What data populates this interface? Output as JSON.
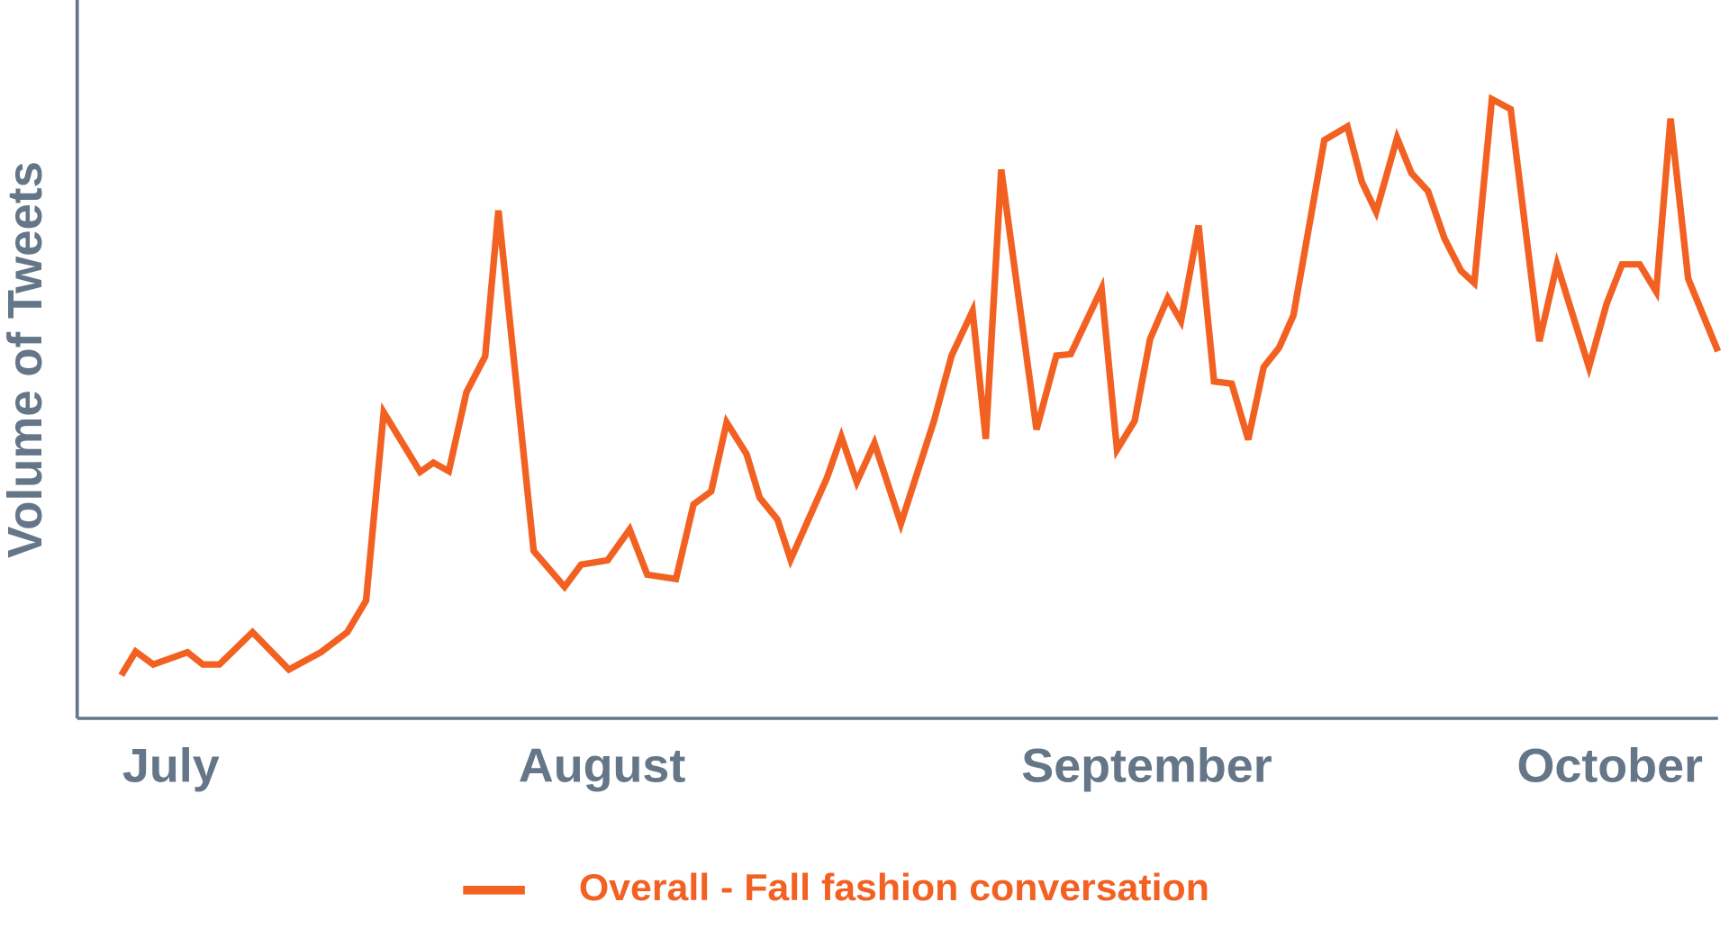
{
  "chart_data": {
    "type": "line",
    "y_label": "Volume of Tweets",
    "x": [
      11,
      12.3,
      13.9,
      17,
      18.4,
      19.9,
      22.9,
      26.2,
      29.1,
      31.5,
      33.2,
      34.8,
      38.1,
      39.3,
      40.7,
      42.3,
      44,
      45.2,
      48.4,
      51.2,
      52.7,
      55.1,
      57.1,
      58.7,
      61.3,
      62.9,
      64.5,
      65.9,
      67.7,
      68.9,
      70.5,
      71.7,
      75,
      76.3,
      77.7,
      79.3,
      81.7,
      84.7,
      86.3,
      88.2,
      89.4,
      90.8,
      94,
      95.8,
      97.1,
      99.9,
      101.3,
      102.9,
      104.3,
      105.9,
      107.1,
      108.7,
      110.1,
      111.7,
      113.2,
      114.6,
      116,
      117.3,
      120.1,
      122.2,
      123.5,
      124.8,
      126.7,
      128,
      129.5,
      131,
      132.5,
      133.7,
      135.3,
      137,
      139.6,
      141.2,
      144.1,
      145.7,
      147.1,
      148.7,
      150.2,
      151.5,
      153.1,
      155.8
    ],
    "series": [
      {
        "name": "Overall - Fall fashion conversation",
        "color": "#f26122",
        "values": [
          6.0,
          9.3,
          7.5,
          9.2,
          7.5,
          7.5,
          12.0,
          6.8,
          9.2,
          12.0,
          16.4,
          42.6,
          34.3,
          35.6,
          34.4,
          45.4,
          50.4,
          70.7,
          23.3,
          18.3,
          21.4,
          22.0,
          26.3,
          20.0,
          19.4,
          29.8,
          31.6,
          41.2,
          36.8,
          30.7,
          27.7,
          22.1,
          33.5,
          39.2,
          32.9,
          38.3,
          27.1,
          41.4,
          50.5,
          56.7,
          38.9,
          76.4,
          40.2,
          50.5,
          50.7,
          59.8,
          37.4,
          41.4,
          52.8,
          58.5,
          55.3,
          68.6,
          46.9,
          46.6,
          38.8,
          48.9,
          51.6,
          56.1,
          80.5,
          82.4,
          74.7,
          70.5,
          80.8,
          75.9,
          73.4,
          66.8,
          62.3,
          60.6,
          86.2,
          84.8,
          52.5,
          63.2,
          48.9,
          57.7,
          63.2,
          63.2,
          59.4,
          83.5,
          61.2,
          51.1
        ]
      }
    ],
    "xlim": [
      7,
      155.8
    ],
    "xticks": [
      {
        "value": 15.5,
        "label": "July"
      },
      {
        "value": 54.6,
        "label": "August"
      },
      {
        "value": 104,
        "label": "September"
      },
      {
        "value": 146,
        "label": "October"
      }
    ],
    "ylim": [
      0,
      100
    ],
    "axis_color": "#647687",
    "legend": "bottom"
  }
}
